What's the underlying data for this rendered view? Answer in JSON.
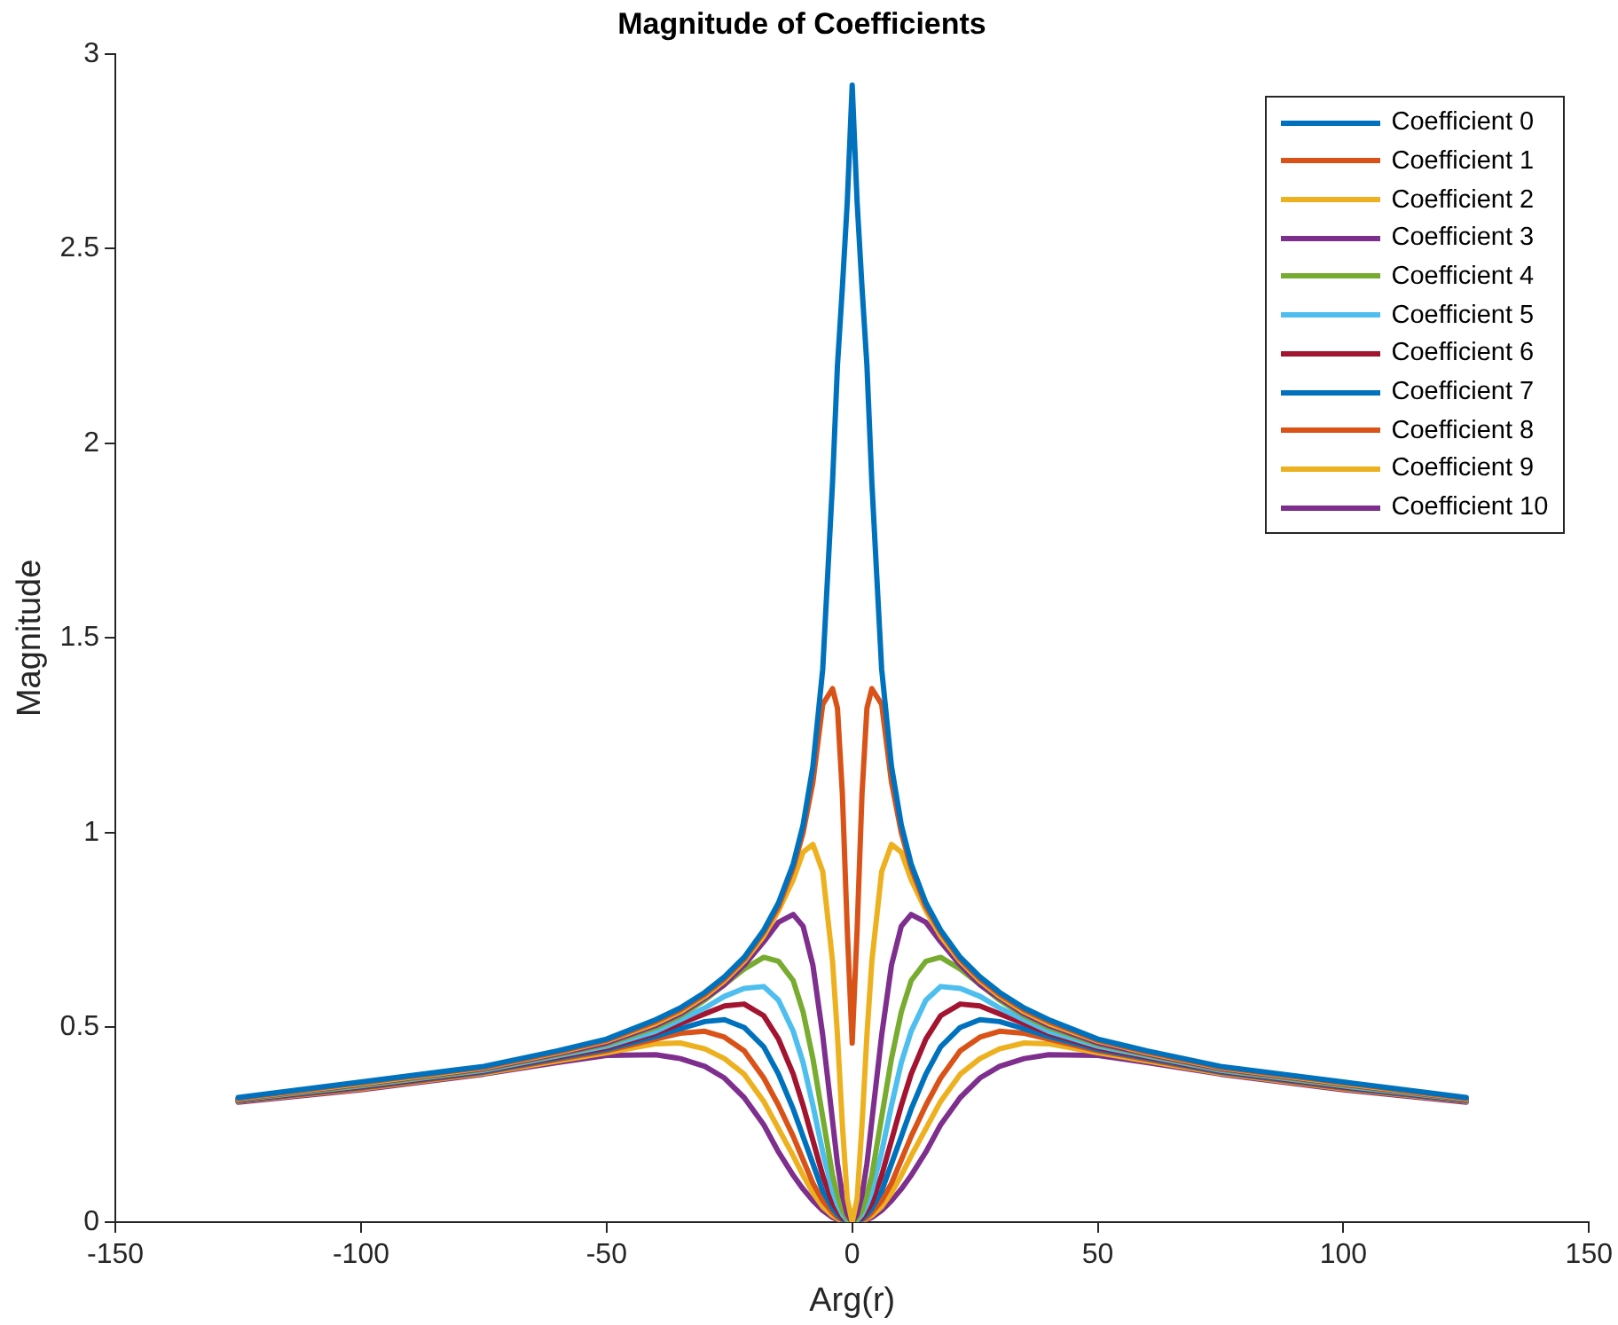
{
  "chart_data": {
    "type": "line",
    "title": "Magnitude of Coefficients",
    "xlabel": "Arg(r)",
    "ylabel": "Magnitude",
    "x": [
      -125,
      -100,
      -75,
      -60,
      -50,
      -40,
      -35,
      -30,
      -26,
      -22,
      -18,
      -15,
      -12,
      -10,
      -8,
      -6,
      -4,
      -3,
      -2,
      -1,
      0,
      1,
      2,
      3,
      4,
      6,
      8,
      10,
      12,
      15,
      18,
      22,
      26,
      30,
      35,
      40,
      50,
      60,
      75,
      100,
      125
    ],
    "series": [
      {
        "name": "Coefficient 0",
        "color": "#0072bd",
        "values": [
          0.32,
          0.36,
          0.4,
          0.44,
          0.47,
          0.52,
          0.55,
          0.59,
          0.63,
          0.68,
          0.75,
          0.82,
          0.92,
          1.02,
          1.17,
          1.42,
          1.9,
          2.2,
          2.4,
          2.62,
          2.92,
          2.62,
          2.4,
          2.2,
          1.9,
          1.42,
          1.17,
          1.02,
          0.92,
          0.82,
          0.75,
          0.68,
          0.63,
          0.59,
          0.55,
          0.52,
          0.47,
          0.44,
          0.4,
          0.36,
          0.32
        ]
      },
      {
        "name": "Coefficient 1",
        "color": "#d95319",
        "values": [
          0.318,
          0.358,
          0.398,
          0.437,
          0.467,
          0.515,
          0.545,
          0.585,
          0.625,
          0.675,
          0.745,
          0.81,
          0.91,
          1.0,
          1.13,
          1.33,
          1.37,
          1.32,
          1.1,
          0.75,
          0.46,
          0.75,
          1.1,
          1.32,
          1.37,
          1.33,
          1.13,
          1.0,
          0.91,
          0.81,
          0.745,
          0.675,
          0.625,
          0.585,
          0.545,
          0.515,
          0.467,
          0.437,
          0.398,
          0.358,
          0.318
        ]
      },
      {
        "name": "Coefficient 2",
        "color": "#edb120",
        "values": [
          0.317,
          0.356,
          0.396,
          0.435,
          0.465,
          0.51,
          0.54,
          0.58,
          0.62,
          0.67,
          0.735,
          0.8,
          0.88,
          0.95,
          0.97,
          0.9,
          0.67,
          0.48,
          0.25,
          0.06,
          0,
          0.06,
          0.25,
          0.48,
          0.67,
          0.9,
          0.97,
          0.95,
          0.88,
          0.8,
          0.735,
          0.67,
          0.62,
          0.58,
          0.54,
          0.51,
          0.465,
          0.435,
          0.396,
          0.356,
          0.317
        ]
      },
      {
        "name": "Coefficient 3",
        "color": "#7e2f8e",
        "values": [
          0.316,
          0.354,
          0.394,
          0.432,
          0.46,
          0.505,
          0.535,
          0.575,
          0.61,
          0.66,
          0.72,
          0.77,
          0.79,
          0.76,
          0.66,
          0.48,
          0.26,
          0.15,
          0.07,
          0.02,
          0,
          0.02,
          0.07,
          0.15,
          0.26,
          0.48,
          0.66,
          0.76,
          0.79,
          0.77,
          0.72,
          0.66,
          0.61,
          0.575,
          0.535,
          0.505,
          0.46,
          0.432,
          0.394,
          0.354,
          0.316
        ]
      },
      {
        "name": "Coefficient 4",
        "color": "#77ac30",
        "values": [
          0.315,
          0.352,
          0.392,
          0.43,
          0.457,
          0.5,
          0.53,
          0.57,
          0.61,
          0.65,
          0.68,
          0.67,
          0.62,
          0.54,
          0.42,
          0.27,
          0.12,
          0.07,
          0.03,
          0.01,
          0,
          0.01,
          0.03,
          0.07,
          0.12,
          0.27,
          0.42,
          0.54,
          0.62,
          0.67,
          0.68,
          0.65,
          0.61,
          0.57,
          0.53,
          0.5,
          0.457,
          0.43,
          0.392,
          0.352,
          0.315
        ]
      },
      {
        "name": "Coefficient 5",
        "color": "#4dbeee",
        "values": [
          0.314,
          0.35,
          0.39,
          0.427,
          0.452,
          0.49,
          0.52,
          0.55,
          0.58,
          0.6,
          0.605,
          0.57,
          0.49,
          0.41,
          0.3,
          0.18,
          0.08,
          0.045,
          0.02,
          0.005,
          0,
          0.005,
          0.02,
          0.045,
          0.08,
          0.18,
          0.3,
          0.41,
          0.49,
          0.57,
          0.605,
          0.6,
          0.58,
          0.55,
          0.52,
          0.49,
          0.452,
          0.427,
          0.39,
          0.35,
          0.314
        ]
      },
      {
        "name": "Coefficient 6",
        "color": "#a2142f",
        "values": [
          0.313,
          0.348,
          0.388,
          0.424,
          0.448,
          0.485,
          0.51,
          0.535,
          0.555,
          0.56,
          0.53,
          0.47,
          0.38,
          0.3,
          0.21,
          0.12,
          0.05,
          0.03,
          0.012,
          0.003,
          0,
          0.003,
          0.012,
          0.03,
          0.05,
          0.12,
          0.21,
          0.3,
          0.38,
          0.47,
          0.53,
          0.56,
          0.555,
          0.535,
          0.51,
          0.485,
          0.448,
          0.424,
          0.388,
          0.348,
          0.313
        ]
      },
      {
        "name": "Coefficient 7",
        "color": "#0072bd",
        "values": [
          0.312,
          0.346,
          0.386,
          0.421,
          0.444,
          0.477,
          0.497,
          0.515,
          0.52,
          0.5,
          0.45,
          0.38,
          0.29,
          0.22,
          0.15,
          0.08,
          0.035,
          0.02,
          0.008,
          0.002,
          0,
          0.002,
          0.008,
          0.02,
          0.035,
          0.08,
          0.15,
          0.22,
          0.29,
          0.38,
          0.45,
          0.5,
          0.52,
          0.515,
          0.497,
          0.477,
          0.444,
          0.421,
          0.386,
          0.346,
          0.312
        ]
      },
      {
        "name": "Coefficient 8",
        "color": "#d95319",
        "values": [
          0.311,
          0.344,
          0.384,
          0.418,
          0.44,
          0.47,
          0.485,
          0.49,
          0.475,
          0.44,
          0.37,
          0.3,
          0.22,
          0.16,
          0.1,
          0.055,
          0.025,
          0.013,
          0.005,
          0.001,
          0,
          0.001,
          0.005,
          0.013,
          0.025,
          0.055,
          0.1,
          0.16,
          0.22,
          0.3,
          0.37,
          0.44,
          0.475,
          0.49,
          0.485,
          0.47,
          0.44,
          0.418,
          0.384,
          0.344,
          0.311
        ]
      },
      {
        "name": "Coefficient 9",
        "color": "#edb120",
        "values": [
          0.31,
          0.342,
          0.382,
          0.414,
          0.435,
          0.458,
          0.46,
          0.445,
          0.42,
          0.38,
          0.31,
          0.24,
          0.17,
          0.12,
          0.075,
          0.04,
          0.017,
          0.009,
          0.004,
          0.001,
          0,
          0.001,
          0.004,
          0.009,
          0.017,
          0.04,
          0.075,
          0.12,
          0.17,
          0.24,
          0.31,
          0.38,
          0.42,
          0.445,
          0.46,
          0.458,
          0.435,
          0.414,
          0.382,
          0.342,
          0.31
        ]
      },
      {
        "name": "Coefficient 10",
        "color": "#7e2f8e",
        "values": [
          0.308,
          0.34,
          0.38,
          0.41,
          0.428,
          0.43,
          0.42,
          0.4,
          0.37,
          0.32,
          0.25,
          0.18,
          0.12,
          0.085,
          0.055,
          0.03,
          0.012,
          0.007,
          0.003,
          0.001,
          0,
          0.001,
          0.003,
          0.007,
          0.012,
          0.03,
          0.055,
          0.085,
          0.12,
          0.18,
          0.25,
          0.32,
          0.37,
          0.4,
          0.42,
          0.43,
          0.428,
          0.41,
          0.38,
          0.34,
          0.308
        ]
      }
    ],
    "xlim": [
      -150,
      150
    ],
    "xticks": [
      -150,
      -100,
      -50,
      0,
      50,
      100,
      150
    ],
    "ylim": [
      0,
      3
    ],
    "yticks": [
      0,
      0.5,
      1,
      1.5,
      2,
      2.5,
      3
    ],
    "grid": false,
    "legend": "top right",
    "marker": "none",
    "line_style": "solid"
  }
}
